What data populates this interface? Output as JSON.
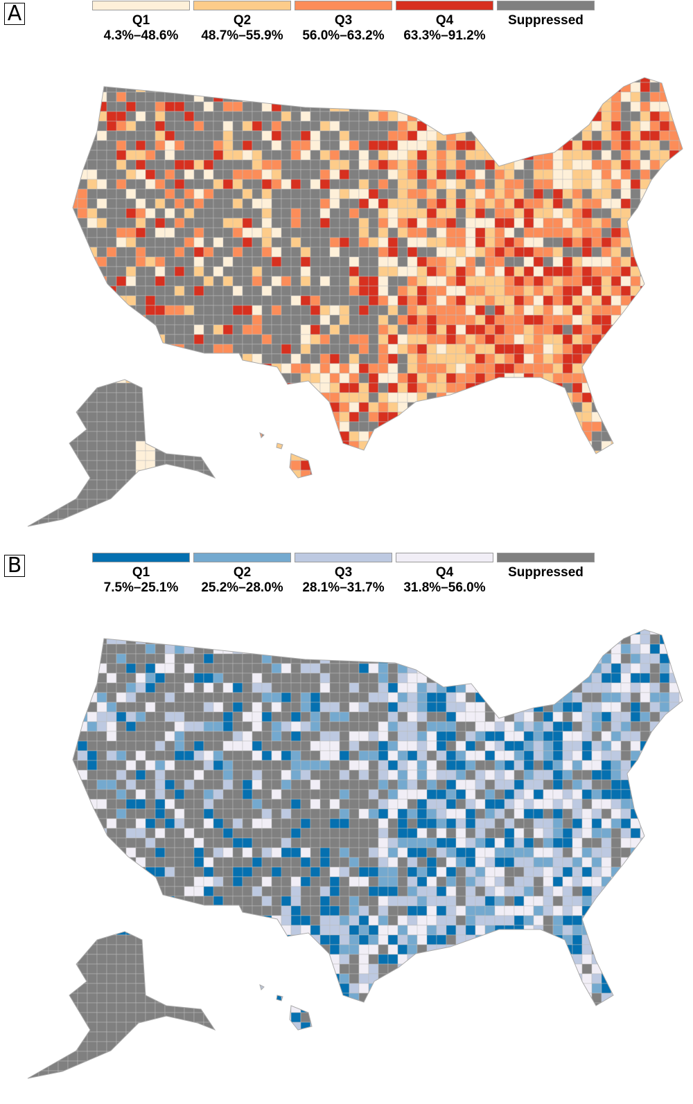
{
  "panels": [
    {
      "label": "A",
      "legend": [
        {
          "label": "Q1",
          "range": "4.3%–48.6%",
          "color": "#fef0d9"
        },
        {
          "label": "Q2",
          "range": "48.7%–55.9%",
          "color": "#fdcc8a"
        },
        {
          "label": "Q3",
          "range": "56.0%–63.2%",
          "color": "#fc8d59"
        },
        {
          "label": "Q4",
          "range": "63.3%–91.2%",
          "color": "#d7301f"
        },
        {
          "label": "Suppressed",
          "range": "",
          "color": "#808080"
        }
      ]
    },
    {
      "label": "B",
      "legend": [
        {
          "label": "Q1",
          "range": "7.5%–25.1%",
          "color": "#0570b0"
        },
        {
          "label": "Q2",
          "range": "25.2%–28.0%",
          "color": "#74a9cf"
        },
        {
          "label": "Q3",
          "range": "28.1%–31.7%",
          "color": "#bdc9e1"
        },
        {
          "label": "Q4",
          "range": "31.8%–56.0%",
          "color": "#f1eef6"
        },
        {
          "label": "Suppressed",
          "range": "",
          "color": "#808080"
        }
      ]
    }
  ]
}
